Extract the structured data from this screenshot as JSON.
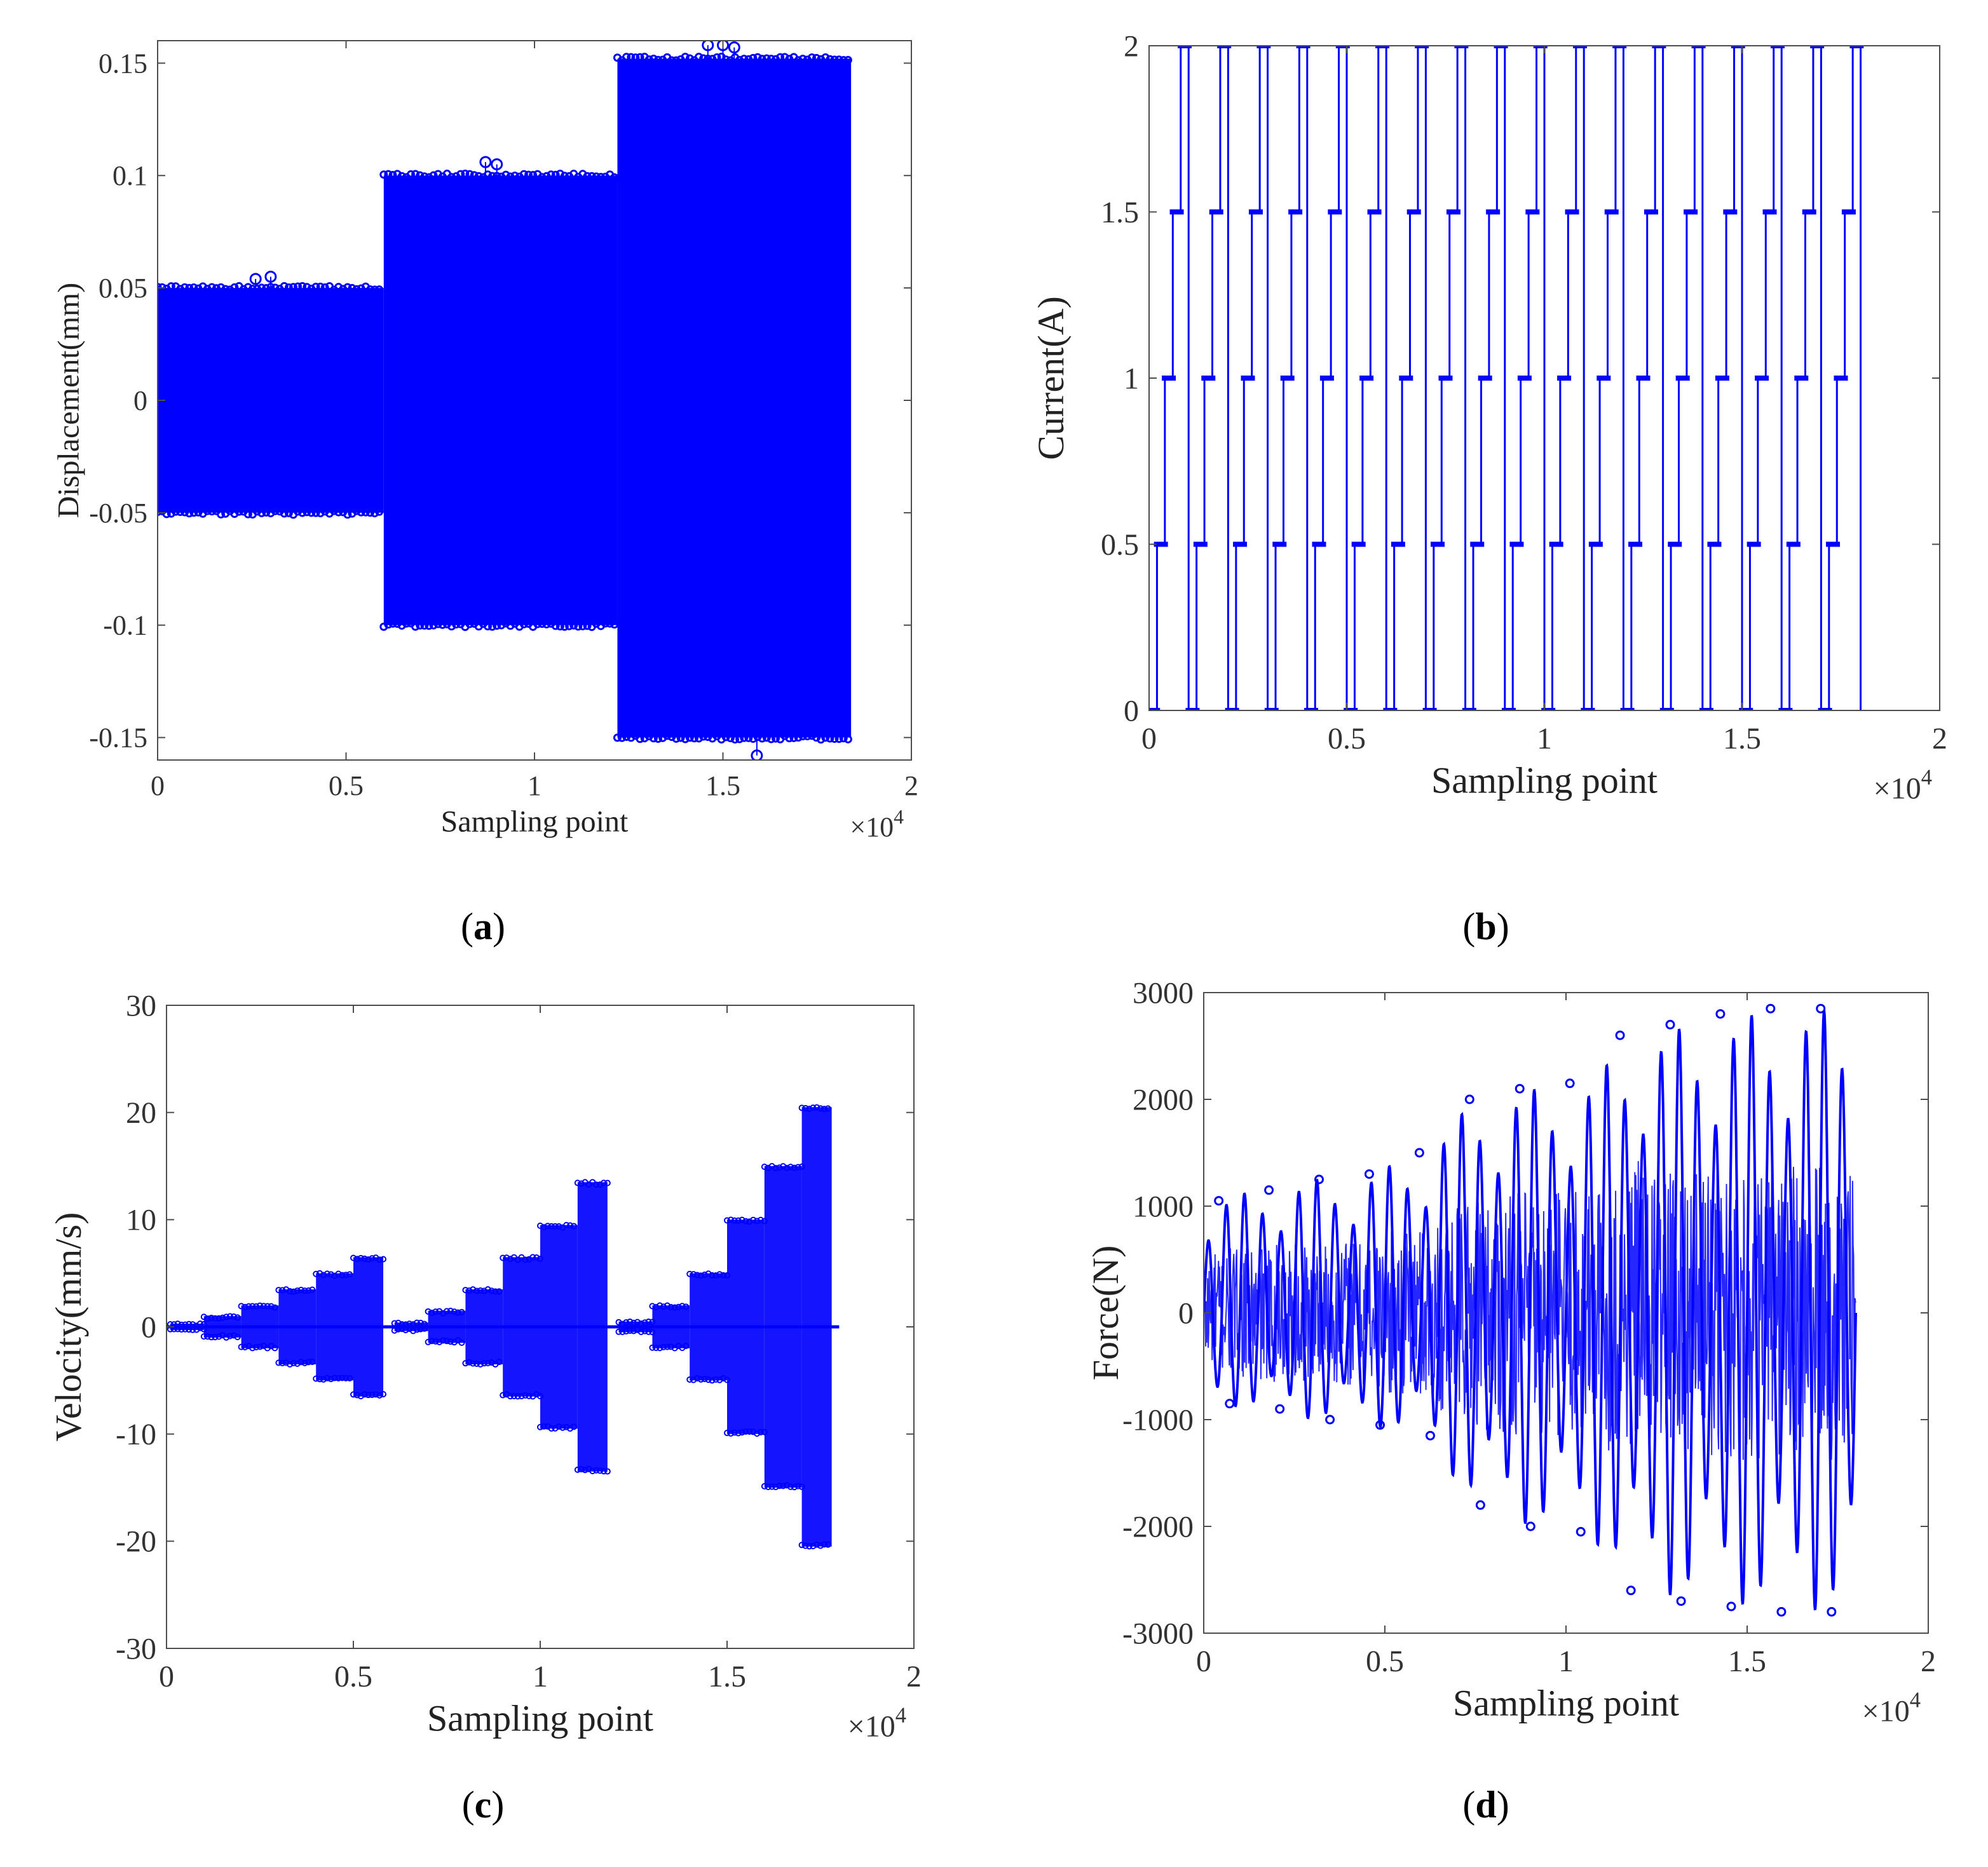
{
  "colors": {
    "series": "#0000ff",
    "axis": "#4d4d4d",
    "text": "#222222"
  },
  "chart_data": [
    {
      "id": "a",
      "type": "scatter",
      "caption": {
        "open": "(",
        "letter": "a",
        "close": ")"
      },
      "xlabel": "Sampling point",
      "ylabel": "Displacement(mm)",
      "x_multiplier": {
        "base": "×10",
        "exp": "4"
      },
      "xlim": [
        0,
        2
      ],
      "ylim": [
        -0.16,
        0.16
      ],
      "xticks": [
        0,
        0.5,
        1,
        1.5,
        2
      ],
      "xtick_labels": [
        "0",
        "0.5",
        "1",
        "1.5",
        "2"
      ],
      "yticks": [
        -0.15,
        -0.1,
        -0.05,
        0,
        0.05,
        0.1,
        0.15
      ],
      "ytick_labels": [
        "-0.15",
        "-0.1",
        "-0.05",
        "0",
        "0.05",
        "0.1",
        "0.15"
      ],
      "bands": [
        {
          "x0": 0,
          "x1": 0.6,
          "lo": -0.05,
          "hi": 0.05
        },
        {
          "x0": 0.6,
          "x1": 1.22,
          "lo": -0.1,
          "hi": 0.1
        },
        {
          "x0": 1.22,
          "x1": 1.84,
          "lo": -0.15,
          "hi": 0.152
        }
      ],
      "outliers": [
        [
          0.26,
          0.054
        ],
        [
          0.3,
          0.055
        ],
        [
          0.87,
          0.106
        ],
        [
          0.9,
          0.105
        ],
        [
          1.46,
          0.158
        ],
        [
          1.5,
          0.158
        ],
        [
          1.53,
          0.157
        ],
        [
          1.59,
          -0.158
        ]
      ]
    },
    {
      "id": "b",
      "type": "line",
      "caption": {
        "open": "(",
        "letter": "b",
        "close": ")"
      },
      "xlabel": "Sampling point",
      "ylabel": "Current(A)",
      "x_multiplier": {
        "base": "×10",
        "exp": "4"
      },
      "xlim": [
        0,
        2
      ],
      "ylim": [
        0,
        2
      ],
      "xticks": [
        0,
        0.5,
        1,
        1.5,
        2
      ],
      "xtick_labels": [
        "0",
        "0.5",
        "1",
        "1.5",
        "2"
      ],
      "yticks": [
        0,
        0.5,
        1,
        1.5,
        2
      ],
      "ytick_labels": [
        "0",
        "0.5",
        "1",
        "1.5",
        "2"
      ],
      "sequence_period": 0.1,
      "periods": 18,
      "levels": [
        0,
        0.5,
        1,
        1.5,
        2
      ]
    },
    {
      "id": "c",
      "type": "scatter",
      "caption": {
        "open": "(",
        "letter": "c",
        "close": ")"
      },
      "xlabel": "Sampling point",
      "ylabel": "Velocity(mm/s)",
      "x_multiplier": {
        "base": "×10",
        "exp": "4"
      },
      "xlim": [
        0,
        2
      ],
      "ylim": [
        -30,
        30
      ],
      "xticks": [
        0,
        0.5,
        1,
        1.5,
        2
      ],
      "xtick_labels": [
        "0",
        "0.5",
        "1",
        "1.5",
        "2"
      ],
      "yticks": [
        -30,
        -20,
        -10,
        0,
        10,
        20,
        30
      ],
      "ytick_labels": [
        "-30",
        "-20",
        "-10",
        "0",
        "10",
        "20",
        "30"
      ],
      "groups": [
        {
          "x0": 0.0,
          "x1": 0.6,
          "amps": [
            0.3,
            1.0,
            2.0,
            3.5,
            5.0,
            6.5
          ]
        },
        {
          "x0": 0.6,
          "x1": 1.2,
          "amps": [
            0.4,
            1.5,
            3.5,
            6.5,
            9.5,
            13.5
          ]
        },
        {
          "x0": 1.2,
          "x1": 1.8,
          "amps": [
            0.5,
            2.0,
            5.0,
            10.0,
            15.0,
            20.5
          ]
        }
      ]
    },
    {
      "id": "d",
      "type": "scatter",
      "caption": {
        "open": "(",
        "letter": "d",
        "close": ")"
      },
      "xlabel": "Sampling point",
      "ylabel": "Force(N)",
      "x_multiplier": {
        "base": "×10",
        "exp": "4"
      },
      "xlim": [
        0,
        2
      ],
      "ylim": [
        -3000,
        3000
      ],
      "xticks": [
        0,
        0.5,
        1,
        1.5,
        2
      ],
      "xtick_labels": [
        "0",
        "0.5",
        "1",
        "1.5",
        "2"
      ],
      "yticks": [
        -3000,
        -2000,
        -1000,
        0,
        1000,
        2000,
        3000
      ],
      "ytick_labels": [
        "-3000",
        "-2000",
        "-1000",
        "0",
        "1000",
        "2000",
        "3000"
      ],
      "oscillation": {
        "x_end": 1.8,
        "period": 0.05,
        "peak_pos": [
          1050,
          1150,
          1250,
          1300,
          1500,
          2000,
          2100,
          2150,
          2600,
          2700,
          2800,
          2850,
          2850
        ],
        "peak_neg": [
          -850,
          -900,
          -1000,
          -1050,
          -1150,
          -1800,
          -2000,
          -2050,
          -2600,
          -2700,
          -2750,
          -2800,
          -2800
        ]
      }
    }
  ]
}
